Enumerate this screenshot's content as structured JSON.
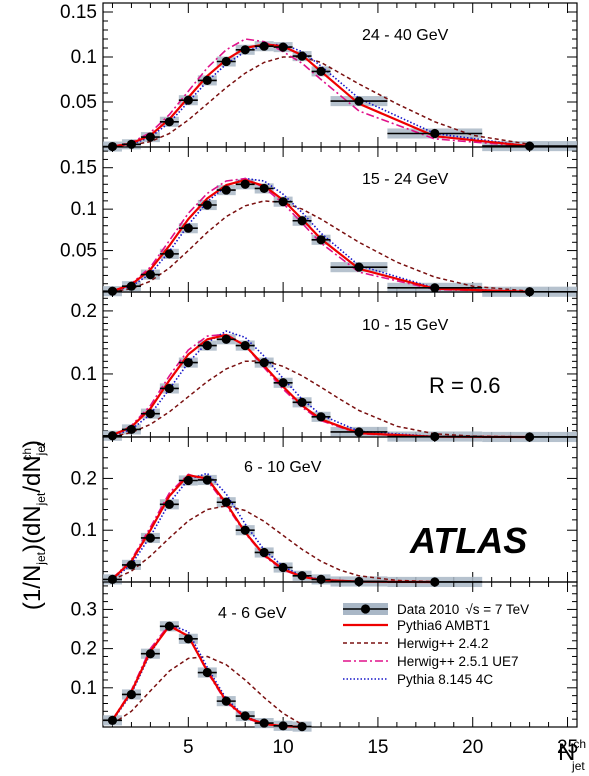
{
  "chart_data": {
    "type": "line",
    "xlim": [
      0.5,
      25.5
    ],
    "x_ticks": [
      5,
      10,
      15,
      20,
      25
    ],
    "x_label": "N",
    "x_label_sup": "ch",
    "x_label_sub": "jet",
    "y_label": "(1/N_jet)(dN_jet/dN_jet^ch)",
    "y_label_parts": {
      "p1": "(1/N",
      "s1": "jet",
      "p2": ")(dN",
      "s2": "jet",
      "p3": "/dN",
      "s3": "jet",
      "sup3": "ch",
      "p4": ")"
    },
    "radius_label": "R = 0.6",
    "experiment_label": "ATLAS",
    "legend": [
      {
        "name": "Data 2010",
        "energy": "√s = 7 TeV",
        "style": "data"
      },
      {
        "name": "Pythia6 AMBT1",
        "style": "solid-red"
      },
      {
        "name": "Herwig++ 2.4.2",
        "style": "dashed-brown"
      },
      {
        "name": "Herwig++ 2.5.1 UE7",
        "style": "dashdot-magenta"
      },
      {
        "name": "Pythia 8.145 4C",
        "style": "dotted-blue"
      }
    ],
    "colors": {
      "data": "#000000",
      "band": "#a9b7c6",
      "pythia6": "#ee0000",
      "herwig242": "#7a1010",
      "herwig251": "#e0118a",
      "pythia8": "#1515c8"
    },
    "panels": [
      {
        "title": "24 - 40 GeV",
        "ylim": [
          0,
          0.16
        ],
        "yticks": [
          0.05,
          0.1,
          0.15
        ],
        "ytick_labels": [
          "0.05",
          "0.1",
          "0.15"
        ],
        "data": {
          "x": [
            1,
            2,
            3,
            4,
            5,
            6,
            7,
            8,
            9,
            10,
            11,
            12,
            14,
            18,
            23
          ],
          "y": [
            0.0005,
            0.003,
            0.011,
            0.028,
            0.052,
            0.074,
            0.095,
            0.108,
            0.112,
            0.111,
            0.101,
            0.084,
            0.051,
            0.015,
            0.001
          ],
          "xerr": [
            0.5,
            0.5,
            0.5,
            0.5,
            0.5,
            0.5,
            0.5,
            0.5,
            0.5,
            0.5,
            0.5,
            0.5,
            1.5,
            2.5,
            2.5
          ]
        },
        "series": {
          "pythia6": {
            "x": [
              1,
              2,
              3,
              4,
              5,
              6,
              7,
              8,
              9,
              10,
              11,
              12,
              14,
              18,
              23
            ],
            "y": [
              0.0005,
              0.004,
              0.013,
              0.031,
              0.055,
              0.079,
              0.097,
              0.11,
              0.114,
              0.112,
              0.102,
              0.084,
              0.048,
              0.012,
              0.001
            ]
          },
          "herwig242": {
            "x": [
              1,
              2,
              3,
              4,
              5,
              6,
              7,
              8,
              9,
              10,
              11,
              12,
              13,
              14,
              16,
              18,
              20,
              23
            ],
            "y": [
              0.0003,
              0.002,
              0.006,
              0.015,
              0.03,
              0.048,
              0.066,
              0.082,
              0.094,
              0.1,
              0.1,
              0.094,
              0.082,
              0.07,
              0.048,
              0.028,
              0.013,
              0.003
            ]
          },
          "herwig251": {
            "x": [
              1,
              2,
              3,
              4,
              5,
              6,
              7,
              8,
              9,
              10,
              11,
              12,
              14,
              18,
              23
            ],
            "y": [
              0.0007,
              0.005,
              0.016,
              0.036,
              0.062,
              0.088,
              0.108,
              0.12,
              0.117,
              0.106,
              0.093,
              0.075,
              0.04,
              0.009,
              0.0005
            ]
          },
          "pythia8": {
            "x": [
              1,
              2,
              3,
              4,
              5,
              6,
              7,
              8,
              9,
              10,
              11,
              12,
              14,
              18,
              23
            ],
            "y": [
              0.0004,
              0.003,
              0.011,
              0.027,
              0.05,
              0.073,
              0.092,
              0.106,
              0.113,
              0.114,
              0.106,
              0.09,
              0.054,
              0.015,
              0.001
            ]
          }
        }
      },
      {
        "title": "15 - 24 GeV",
        "ylim": [
          0,
          0.175
        ],
        "yticks": [
          0.05,
          0.1,
          0.15
        ],
        "ytick_labels": [
          "0.05",
          "0.1",
          "0.15"
        ],
        "data": {
          "x": [
            1,
            2,
            3,
            4,
            5,
            6,
            7,
            8,
            9,
            10,
            11,
            12,
            14,
            18,
            23
          ],
          "y": [
            0.001,
            0.007,
            0.021,
            0.046,
            0.077,
            0.105,
            0.123,
            0.13,
            0.125,
            0.109,
            0.086,
            0.063,
            0.03,
            0.005,
            0.0003
          ],
          "xerr": [
            0.5,
            0.5,
            0.5,
            0.5,
            0.5,
            0.5,
            0.5,
            0.5,
            0.5,
            0.5,
            0.5,
            0.5,
            1.5,
            2.5,
            2.5
          ]
        },
        "series": {
          "pythia6": {
            "x": [
              1,
              2,
              3,
              4,
              5,
              6,
              7,
              8,
              9,
              10,
              11,
              12,
              14,
              18,
              23
            ],
            "y": [
              0.001,
              0.009,
              0.027,
              0.056,
              0.088,
              0.113,
              0.129,
              0.135,
              0.128,
              0.111,
              0.088,
              0.064,
              0.028,
              0.004,
              0.0002
            ]
          },
          "herwig242": {
            "x": [
              1,
              2,
              3,
              4,
              5,
              6,
              7,
              8,
              9,
              10,
              11,
              12,
              13,
              14,
              16,
              18,
              20,
              23
            ],
            "y": [
              0.0005,
              0.004,
              0.013,
              0.029,
              0.05,
              0.072,
              0.091,
              0.104,
              0.11,
              0.108,
              0.1,
              0.088,
              0.074,
              0.06,
              0.036,
              0.018,
              0.007,
              0.001
            ]
          },
          "herwig251": {
            "x": [
              1,
              2,
              3,
              4,
              5,
              6,
              7,
              8,
              9,
              10,
              11,
              12,
              14,
              18,
              23
            ],
            "y": [
              0.001,
              0.01,
              0.03,
              0.062,
              0.095,
              0.119,
              0.134,
              0.137,
              0.126,
              0.107,
              0.083,
              0.059,
              0.024,
              0.003,
              0.0002
            ]
          },
          "pythia8": {
            "x": [
              1,
              2,
              3,
              4,
              5,
              6,
              7,
              8,
              9,
              10,
              11,
              12,
              14,
              18,
              23
            ],
            "y": [
              0.001,
              0.007,
              0.022,
              0.049,
              0.081,
              0.109,
              0.128,
              0.137,
              0.134,
              0.118,
              0.096,
              0.071,
              0.032,
              0.005,
              0.0003
            ]
          }
        }
      },
      {
        "title": "10 - 15 GeV",
        "ylim": [
          0,
          0.23
        ],
        "yticks": [
          0.1,
          0.2
        ],
        "ytick_labels": [
          "0.1",
          "0.2"
        ],
        "data": {
          "x": [
            1,
            2,
            3,
            4,
            5,
            6,
            7,
            8,
            9,
            10,
            11,
            12,
            14,
            18,
            23
          ],
          "y": [
            0.002,
            0.012,
            0.037,
            0.077,
            0.118,
            0.145,
            0.155,
            0.145,
            0.118,
            0.086,
            0.055,
            0.032,
            0.008,
            0.0007,
            5e-05
          ],
          "xerr": [
            0.5,
            0.5,
            0.5,
            0.5,
            0.5,
            0.5,
            0.5,
            0.5,
            0.5,
            0.5,
            0.5,
            0.5,
            1.5,
            2.5,
            2.5
          ]
        },
        "series": {
          "pythia6": {
            "x": [
              1,
              2,
              3,
              4,
              5,
              6,
              7,
              8,
              9,
              10,
              11,
              12,
              14,
              18,
              23
            ],
            "y": [
              0.003,
              0.016,
              0.045,
              0.09,
              0.131,
              0.155,
              0.162,
              0.145,
              0.113,
              0.08,
              0.05,
              0.028,
              0.006,
              0.0004,
              0
            ]
          },
          "herwig242": {
            "x": [
              1,
              2,
              3,
              4,
              5,
              6,
              7,
              8,
              9,
              10,
              11,
              12,
              13,
              14,
              16,
              18,
              20,
              23
            ],
            "y": [
              0.001,
              0.007,
              0.02,
              0.04,
              0.064,
              0.088,
              0.108,
              0.12,
              0.121,
              0.112,
              0.097,
              0.079,
              0.06,
              0.042,
              0.017,
              0.005,
              0.0015,
              0.0002
            ]
          },
          "herwig251": {
            "x": [
              1,
              2,
              3,
              4,
              5,
              6,
              7,
              8,
              9,
              10,
              11,
              12,
              14,
              18,
              23
            ],
            "y": [
              0.003,
              0.018,
              0.05,
              0.097,
              0.138,
              0.16,
              0.163,
              0.145,
              0.11,
              0.076,
              0.047,
              0.026,
              0.005,
              0.0003,
              0
            ]
          },
          "pythia8": {
            "x": [
              1,
              2,
              3,
              4,
              5,
              6,
              7,
              8,
              9,
              10,
              11,
              12,
              14,
              18,
              23
            ],
            "y": [
              0.002,
              0.012,
              0.036,
              0.076,
              0.118,
              0.15,
              0.168,
              0.158,
              0.128,
              0.093,
              0.06,
              0.035,
              0.009,
              0.0008,
              0
            ]
          }
        }
      },
      {
        "title": "6 - 10 GeV",
        "ylim": [
          0,
          0.28
        ],
        "yticks": [
          0.1,
          0.2
        ],
        "ytick_labels": [
          "0.1",
          "0.2"
        ],
        "data": {
          "x": [
            1,
            2,
            3,
            4,
            5,
            6,
            7,
            8,
            9,
            10,
            11,
            12,
            14,
            18
          ],
          "y": [
            0.005,
            0.033,
            0.085,
            0.15,
            0.196,
            0.197,
            0.154,
            0.1,
            0.057,
            0.028,
            0.012,
            0.005,
            0.001,
            0.0001
          ],
          "xerr": [
            0.5,
            0.5,
            0.5,
            0.5,
            0.5,
            0.5,
            0.5,
            0.5,
            0.5,
            0.5,
            0.5,
            0.5,
            1.5,
            2.5
          ]
        },
        "series": {
          "pythia6": {
            "x": [
              1,
              2,
              3,
              4,
              5,
              6,
              7,
              8,
              9,
              10,
              11,
              12,
              14,
              18
            ],
            "y": [
              0.006,
              0.04,
              0.1,
              0.166,
              0.206,
              0.2,
              0.152,
              0.096,
              0.052,
              0.025,
              0.01,
              0.004,
              0.0008,
              0
            ]
          },
          "herwig242": {
            "x": [
              1,
              2,
              3,
              4,
              5,
              6,
              7,
              8,
              9,
              10,
              11,
              12,
              13,
              14,
              16,
              18
            ],
            "y": [
              0.004,
              0.021,
              0.05,
              0.085,
              0.118,
              0.14,
              0.147,
              0.138,
              0.117,
              0.09,
              0.063,
              0.04,
              0.023,
              0.012,
              0.003,
              0.0005
            ]
          },
          "herwig251": {
            "x": [
              1,
              2,
              3,
              4,
              5,
              6,
              7,
              8,
              9,
              10,
              11,
              12,
              14,
              18
            ],
            "y": [
              0.007,
              0.043,
              0.106,
              0.172,
              0.208,
              0.196,
              0.148,
              0.094,
              0.05,
              0.023,
              0.01,
              0.004,
              0.0005,
              0
            ]
          },
          "pythia8": {
            "x": [
              1,
              2,
              3,
              4,
              5,
              6,
              7,
              8,
              9,
              10,
              11,
              12,
              14,
              18
            ],
            "y": [
              0.005,
              0.034,
              0.088,
              0.153,
              0.198,
              0.21,
              0.17,
              0.112,
              0.062,
              0.03,
              0.012,
              0.005,
              0.001,
              0
            ]
          }
        }
      },
      {
        "title": "4 - 6 GeV",
        "ylim": [
          0,
          0.37
        ],
        "yticks": [
          0.1,
          0.2,
          0.3
        ],
        "ytick_labels": [
          "0.1",
          "0.2",
          "0.3"
        ],
        "data": {
          "x": [
            1,
            2,
            3,
            4,
            5,
            6,
            7,
            8,
            9,
            10,
            11
          ],
          "y": [
            0.017,
            0.083,
            0.187,
            0.257,
            0.225,
            0.139,
            0.066,
            0.028,
            0.01,
            0.003,
            0.001
          ],
          "xerr": [
            0.5,
            0.5,
            0.5,
            0.5,
            0.5,
            0.5,
            0.5,
            0.5,
            0.5,
            0.5,
            0.5
          ]
        },
        "series": {
          "pythia6": {
            "x": [
              1,
              2,
              3,
              4,
              5,
              6,
              7,
              8,
              9,
              10,
              11
            ],
            "y": [
              0.018,
              0.09,
              0.193,
              0.258,
              0.232,
              0.143,
              0.066,
              0.025,
              0.008,
              0.002,
              0
            ]
          },
          "herwig242": {
            "x": [
              1,
              2,
              3,
              4,
              5,
              6,
              7,
              8,
              9,
              10,
              11
            ],
            "y": [
              0.008,
              0.04,
              0.092,
              0.143,
              0.175,
              0.18,
              0.159,
              0.12,
              0.075,
              0.035,
              0.006
            ]
          },
          "herwig251": {
            "x": [
              1,
              2,
              3,
              4,
              5,
              6,
              7,
              8,
              9,
              10,
              11
            ],
            "y": [
              0.019,
              0.094,
              0.2,
              0.262,
              0.232,
              0.14,
              0.063,
              0.023,
              0.007,
              0.002,
              0
            ]
          },
          "pythia8": {
            "x": [
              1,
              2,
              3,
              4,
              5,
              6,
              7,
              8,
              9,
              10,
              11
            ],
            "y": [
              0.016,
              0.085,
              0.188,
              0.262,
              0.243,
              0.152,
              0.072,
              0.027,
              0.009,
              0.002,
              0
            ]
          }
        }
      }
    ]
  }
}
